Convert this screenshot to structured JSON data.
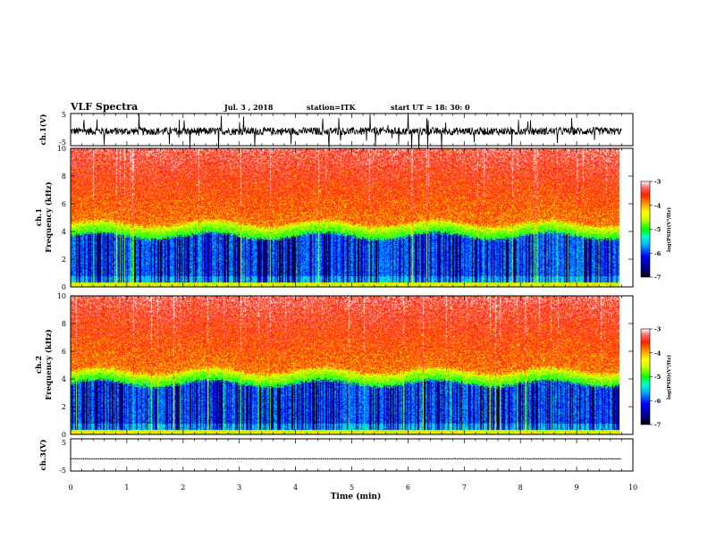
{
  "header": {
    "title": "VLF Spectra",
    "date": "Jul. 3 , 2018",
    "station": "station=ITK",
    "start_time": "start UT = 18: 30: 0"
  },
  "chart_data": [
    {
      "type": "line",
      "name": "ch1-waveform",
      "ylabel": "ch.1(V)",
      "xlim": [
        0,
        10
      ],
      "ylim": [
        -5,
        5
      ],
      "y_ticks": [
        "5",
        "-5"
      ],
      "baseline": -0.5,
      "noise_amplitude": 1.2
    },
    {
      "type": "heatmap",
      "name": "ch1-spectrogram",
      "ylabel": "ch.1\nFrequency (kHz)",
      "xlim": [
        0,
        9.8
      ],
      "ylim": [
        0,
        10
      ],
      "y_ticks": [
        "0",
        "2",
        "4",
        "6",
        "8",
        "10"
      ],
      "colorbar": {
        "label": "log(PSD)(V²/Hz)",
        "range": [
          -7,
          -3
        ],
        "ticks": [
          "-3",
          "-4",
          "-5",
          "-6",
          "-7"
        ]
      }
    },
    {
      "type": "heatmap",
      "name": "ch2-spectrogram",
      "ylabel": "ch.2\nFrequency (kHz)",
      "xlim": [
        0,
        9.8
      ],
      "ylim": [
        0,
        10
      ],
      "y_ticks": [
        "0",
        "2",
        "4",
        "6",
        "8",
        "10"
      ],
      "colorbar": {
        "label": "log(PSD)(V²/Hz)",
        "range": [
          -7,
          -3
        ],
        "ticks": [
          "-3",
          "-4",
          "-5",
          "-6",
          "-7"
        ]
      }
    },
    {
      "type": "line",
      "name": "ch3-waveform",
      "ylabel": "ch.3(V)",
      "xlim": [
        0,
        10
      ],
      "ylim": [
        -5,
        5
      ],
      "y_ticks": [
        "5",
        "-5"
      ],
      "baseline": -1.2,
      "noise_amplitude": 0.05
    }
  ],
  "x_axis": {
    "label": "Time (min)",
    "range": [
      0,
      10
    ],
    "ticks": [
      "0",
      "1",
      "2",
      "3",
      "4",
      "5",
      "6",
      "7",
      "8",
      "9",
      "10"
    ]
  }
}
